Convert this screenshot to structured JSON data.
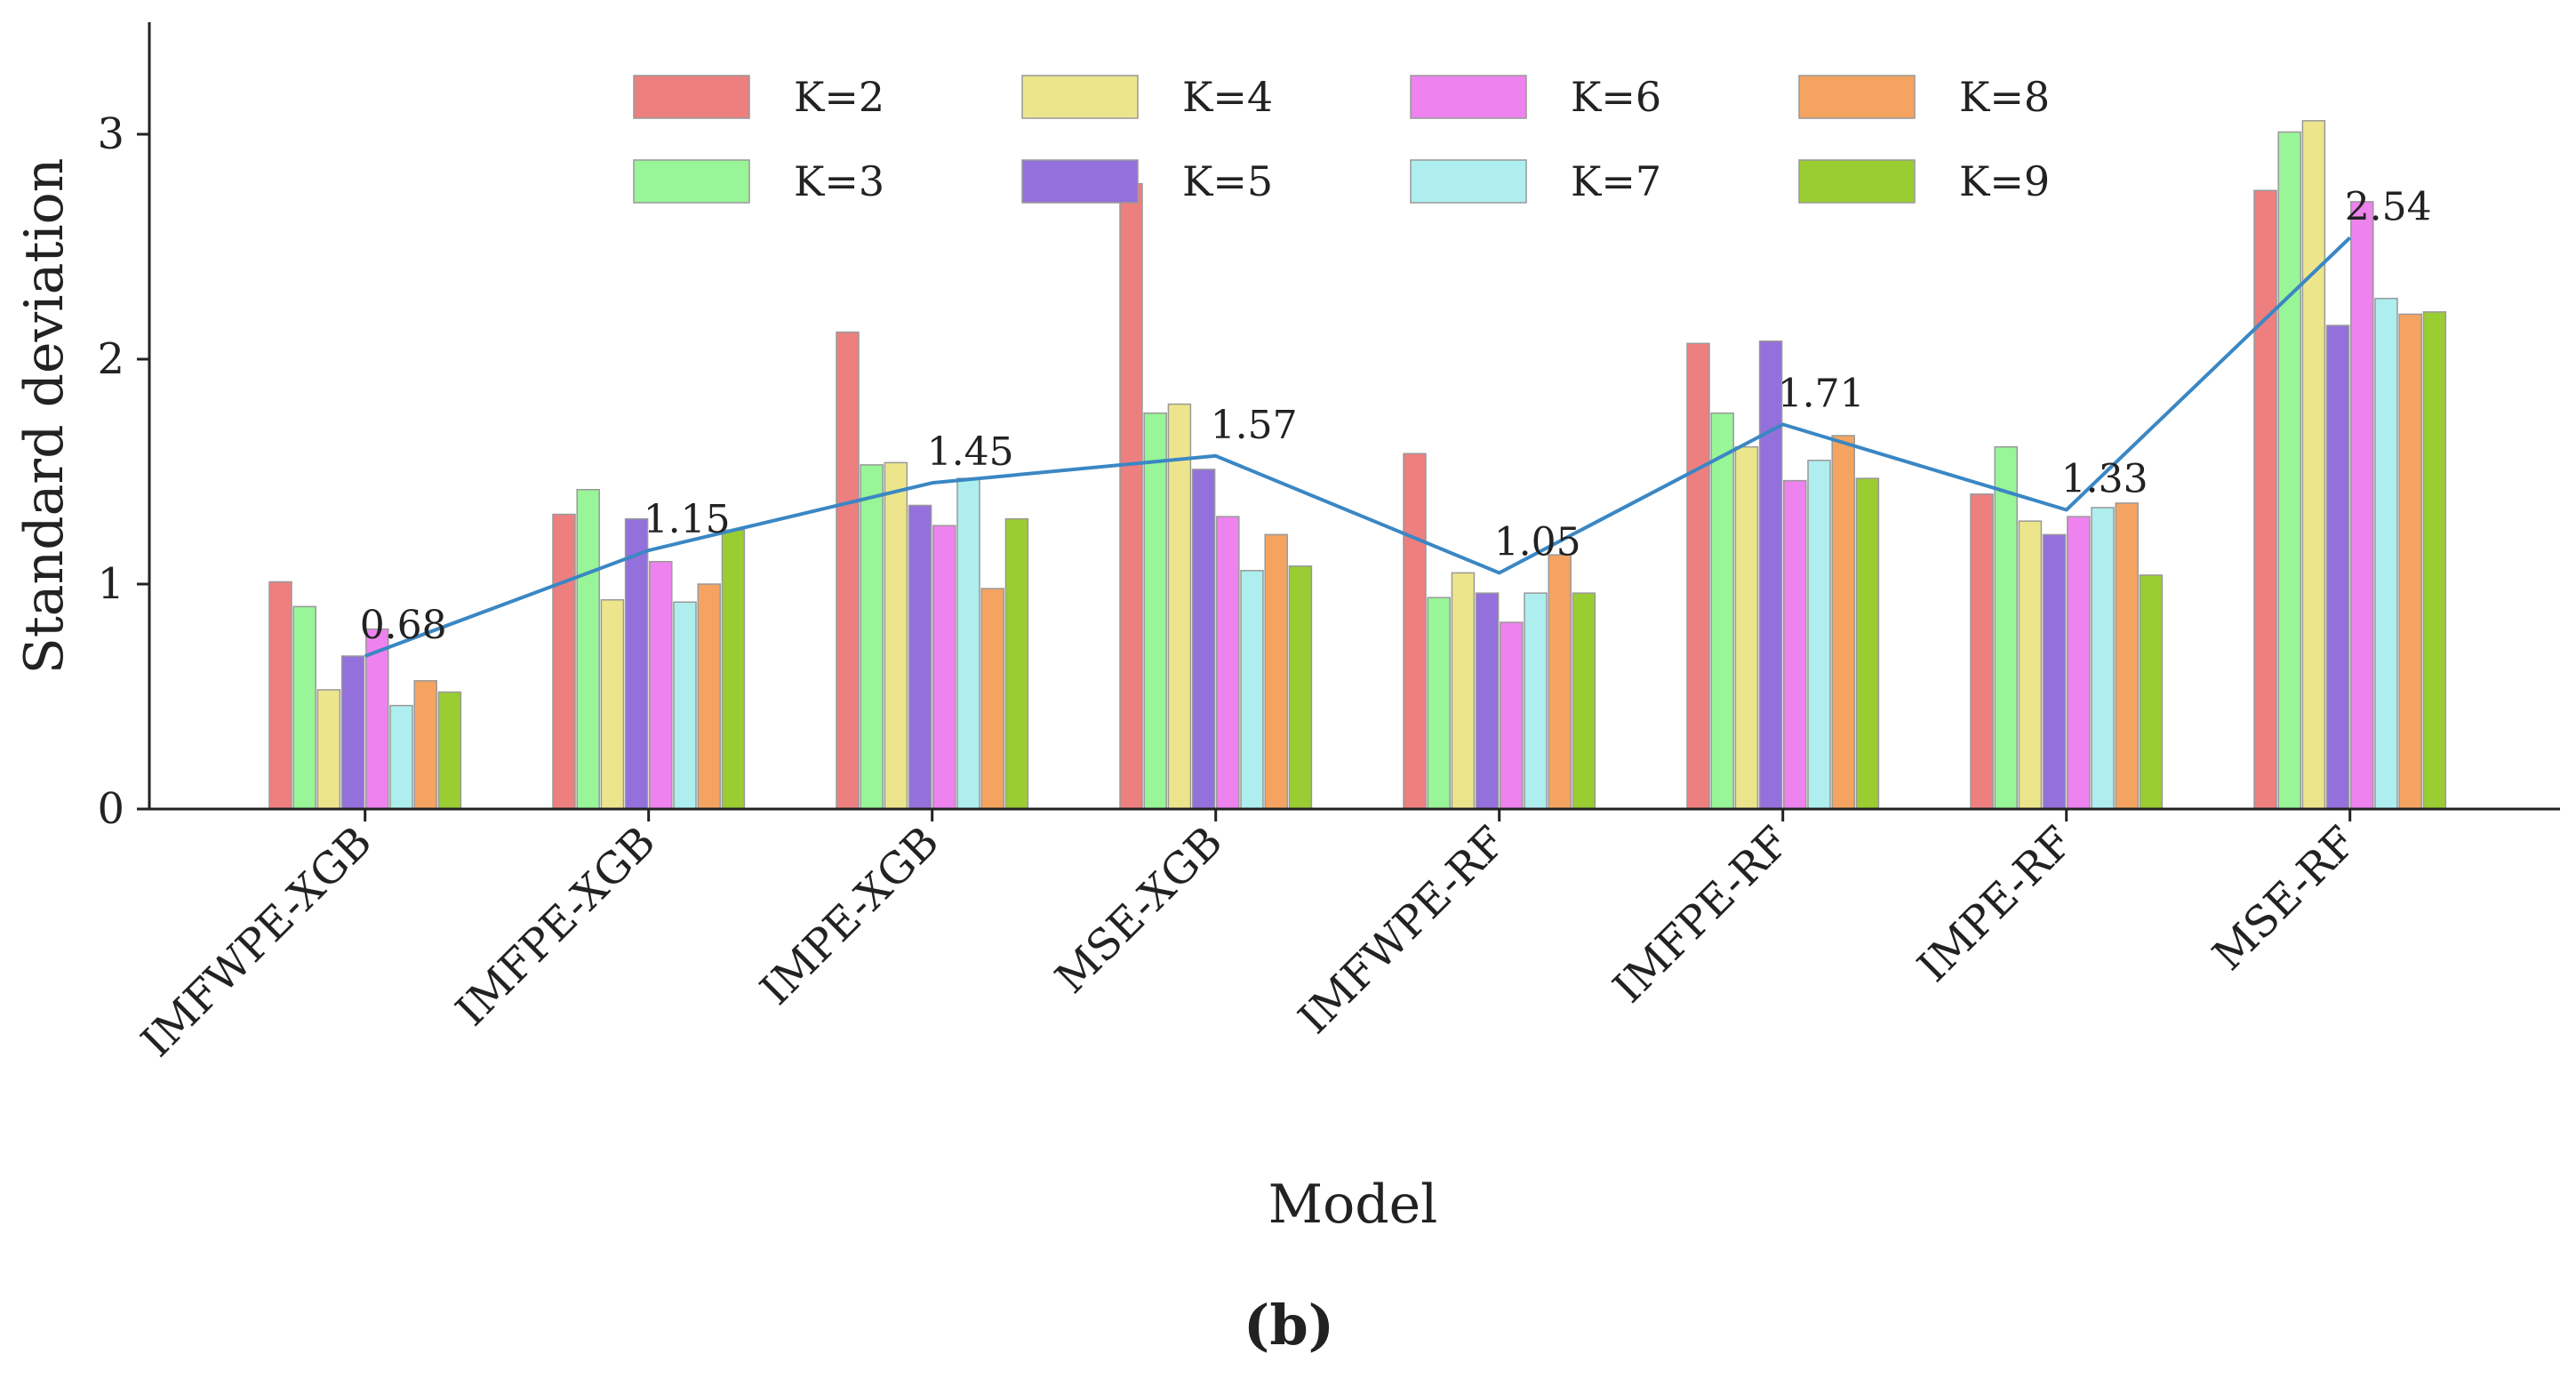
{
  "chart_data": {
    "type": "bar",
    "subtype": "grouped bar with line overlay",
    "panel_label": "(b)",
    "xlabel": "Model",
    "ylabel": "Standard deviation",
    "ylim": [
      0,
      3.5
    ],
    "yticks": [
      0,
      1,
      2,
      3
    ],
    "grid": false,
    "legend_position": "top-center",
    "categories": [
      "IMFWPE-XGB",
      "IMFPE-XGB",
      "IMPE-XGB",
      "MSE-XGB",
      "IMFWPE-RF",
      "IMFPE-RF",
      "IMPE-RF",
      "MSE-RF"
    ],
    "series": [
      {
        "name": "K=2",
        "color": "#ee7f7f",
        "values": [
          1.01,
          1.31,
          2.12,
          2.78,
          1.58,
          2.07,
          1.4,
          2.75
        ]
      },
      {
        "name": "K=3",
        "color": "#98f598",
        "values": [
          0.9,
          1.42,
          1.53,
          1.76,
          0.94,
          1.76,
          1.61,
          3.01
        ]
      },
      {
        "name": "K=4",
        "color": "#ede58c",
        "values": [
          0.53,
          0.93,
          1.54,
          1.8,
          1.05,
          1.61,
          1.28,
          3.06
        ]
      },
      {
        "name": "K=5",
        "color": "#9370db",
        "values": [
          0.68,
          1.29,
          1.35,
          1.51,
          0.96,
          2.08,
          1.22,
          2.15
        ]
      },
      {
        "name": "K=6",
        "color": "#ee82ee",
        "values": [
          0.8,
          1.1,
          1.26,
          1.3,
          0.83,
          1.46,
          1.3,
          2.7
        ]
      },
      {
        "name": "K=7",
        "color": "#aeeeee",
        "values": [
          0.46,
          0.92,
          1.47,
          1.06,
          0.96,
          1.55,
          1.34,
          2.27
        ]
      },
      {
        "name": "K=8",
        "color": "#f4a460",
        "values": [
          0.57,
          1.0,
          0.98,
          1.22,
          1.13,
          1.66,
          1.36,
          2.2
        ]
      },
      {
        "name": "K=9",
        "color": "#9acd32",
        "values": [
          0.52,
          1.24,
          1.29,
          1.08,
          0.96,
          1.47,
          1.04,
          2.21
        ]
      }
    ],
    "average_line": {
      "color": "#3a87c4",
      "values": [
        0.68,
        1.15,
        1.45,
        1.57,
        1.05,
        1.71,
        1.33,
        2.54
      ],
      "labels": [
        "0.68",
        "1.15",
        "1.45",
        "1.57",
        "1.05",
        "1.71",
        "1.33",
        "2.54"
      ]
    }
  }
}
